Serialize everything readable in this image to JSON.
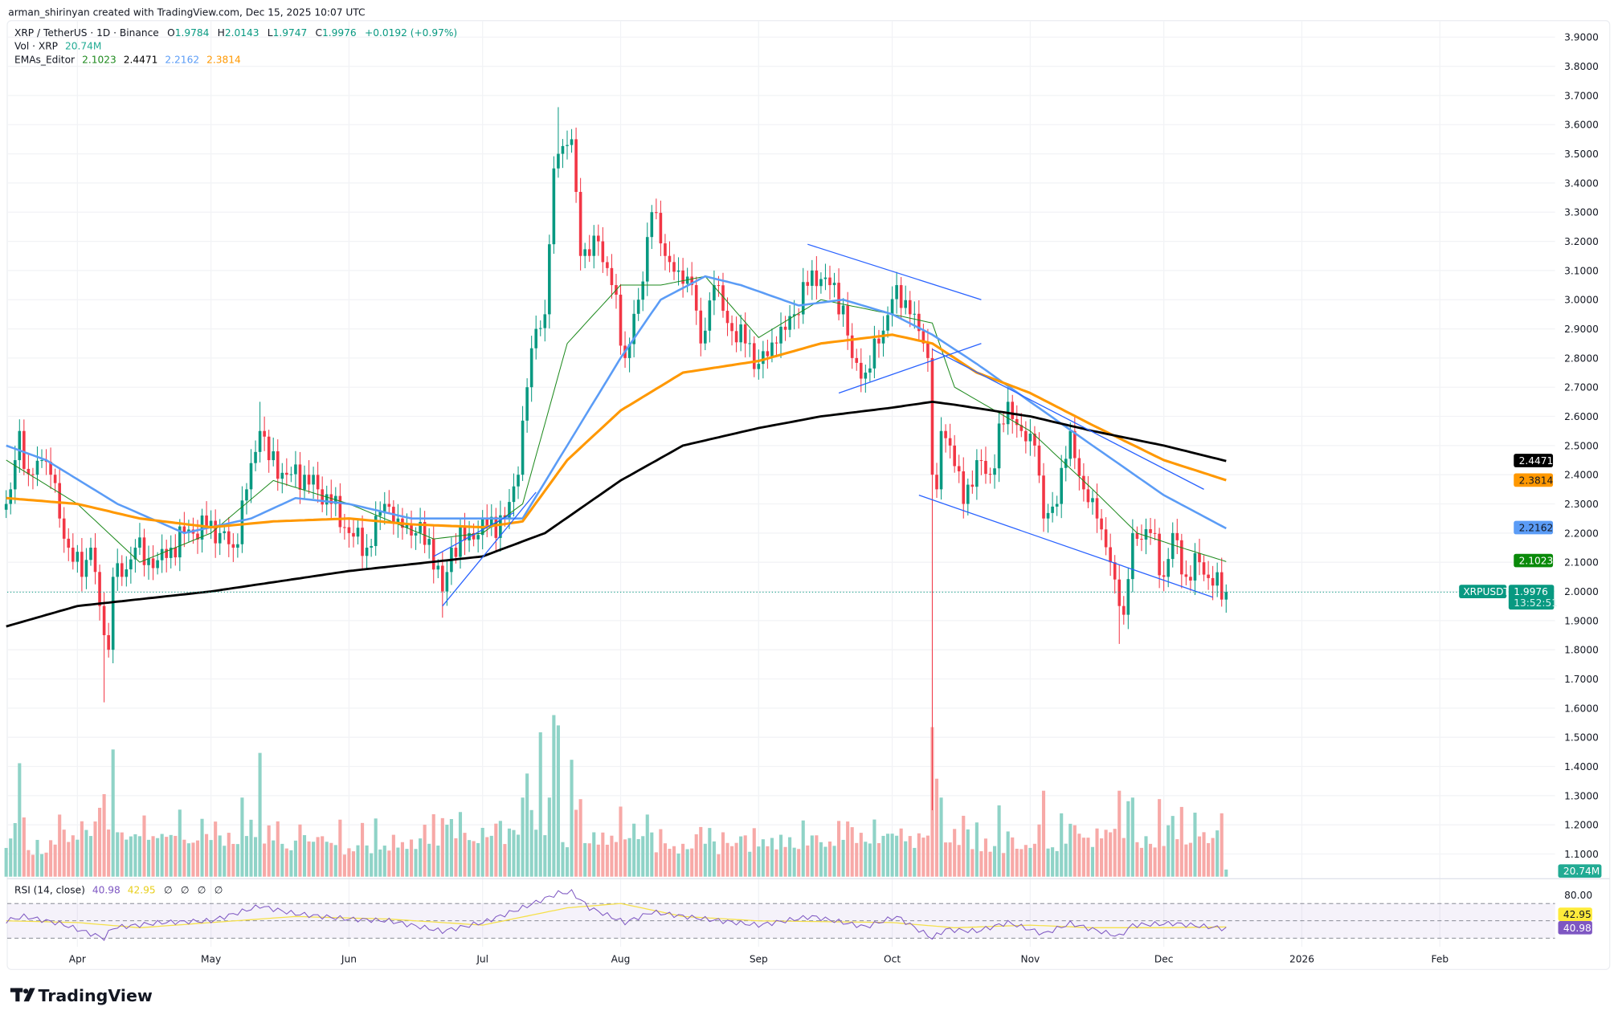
{
  "header": {
    "credit": "arman_shirinyan created with TradingView.com, Dec 15, 2025 10:07 UTC"
  },
  "legend": {
    "symbol": "XRP / TetherUS · 1D · Binance",
    "o_label": "O",
    "o": "1.9784",
    "h_label": "H",
    "h": "2.0143",
    "l_label": "L",
    "l": "1.9747",
    "c_label": "C",
    "c": "1.9976",
    "change": "+0.0192 (+0.97%)",
    "vol_label": "Vol · XRP",
    "vol": "20.74M",
    "ema_label": "EMAs_Editor",
    "ema_values": [
      "2.1023",
      "2.4471",
      "2.2162",
      "2.3814"
    ],
    "rsi_label": "RSI (14, close)",
    "rsi": "40.98",
    "rsi_ma": "42.95",
    "rsi_extra": [
      "∅",
      "∅",
      "∅",
      "∅"
    ]
  },
  "badges": {
    "ema200": "2.4471",
    "ema100": "2.3814",
    "ema50": "2.2162",
    "ema20": "2.1023",
    "symbol": "XRPUSDT",
    "price": "1.9976",
    "countdown": "13:52:51",
    "volume": "20.74M",
    "rsi_ma": "42.95",
    "rsi": "40.98"
  },
  "colors": {
    "up": "#089981",
    "down": "#f23645",
    "ema20": "#1e8a1e",
    "ema200": "#000000",
    "ema50": "#5b9cf6",
    "ema100": "#ff9800",
    "rsi": "#7e57c2",
    "rsi_ma": "#f5e04a",
    "trendline": "#2962ff"
  },
  "logo": {
    "text": "TradingView"
  },
  "chart_data": {
    "type": "candlestick",
    "price_axis": {
      "ylim": [
        1.1,
        3.9
      ],
      "ticks": [
        "3.9000",
        "3.8000",
        "3.7000",
        "3.6000",
        "3.5000",
        "3.4000",
        "3.3000",
        "3.2000",
        "3.1000",
        "3.0000",
        "2.9000",
        "2.8000",
        "2.7000",
        "2.6000",
        "2.5000",
        "2.4000",
        "2.3000",
        "2.2000",
        "2.1000",
        "2.0000",
        "1.9000",
        "1.8000",
        "1.7000",
        "1.6000",
        "1.5000",
        "1.4000",
        "1.3000",
        "1.2000",
        "1.1000"
      ]
    },
    "time_axis": {
      "range": [
        "2025-03-16",
        "2026-02-20"
      ],
      "ticks": [
        {
          "label": "Apr",
          "date": "2025-04-01"
        },
        {
          "label": "May",
          "date": "2025-05-01"
        },
        {
          "label": "Jun",
          "date": "2025-06-01"
        },
        {
          "label": "Jul",
          "date": "2025-07-01"
        },
        {
          "label": "Aug",
          "date": "2025-08-01"
        },
        {
          "label": "Sep",
          "date": "2025-09-01"
        },
        {
          "label": "Oct",
          "date": "2025-10-01"
        },
        {
          "label": "Nov",
          "date": "2025-11-01"
        },
        {
          "label": "Dec",
          "date": "2025-12-01"
        },
        {
          "label": "2026",
          "date": "2026-01-01"
        },
        {
          "label": "Feb",
          "date": "2026-02-01"
        }
      ]
    },
    "close": [
      [
        "2025-03-16",
        2.3
      ],
      [
        "2025-03-17",
        2.35
      ],
      [
        "2025-03-18",
        2.45
      ],
      [
        "2025-03-19",
        2.55
      ],
      [
        "2025-03-20",
        2.42
      ],
      [
        "2025-03-22",
        2.4
      ],
      [
        "2025-03-24",
        2.45
      ],
      [
        "2025-03-26",
        2.4
      ],
      [
        "2025-03-28",
        2.25
      ],
      [
        "2025-03-30",
        2.15
      ],
      [
        "2025-04-02",
        2.05
      ],
      [
        "2025-04-04",
        2.15
      ],
      [
        "2025-04-06",
        1.95
      ],
      [
        "2025-04-07",
        1.85
      ],
      [
        "2025-04-08",
        1.8
      ],
      [
        "2025-04-09",
        2.05
      ],
      [
        "2025-04-11",
        2.05
      ],
      [
        "2025-04-14",
        2.15
      ],
      [
        "2025-04-18",
        2.08
      ],
      [
        "2025-04-22",
        2.15
      ],
      [
        "2025-04-25",
        2.2
      ],
      [
        "2025-04-30",
        2.22
      ],
      [
        "2025-05-03",
        2.2
      ],
      [
        "2025-05-06",
        2.15
      ],
      [
        "2025-05-09",
        2.35
      ],
      [
        "2025-05-12",
        2.55
      ],
      [
        "2025-05-14",
        2.45
      ],
      [
        "2025-05-18",
        2.4
      ],
      [
        "2025-05-22",
        2.4
      ],
      [
        "2025-05-25",
        2.35
      ],
      [
        "2025-05-28",
        2.3
      ],
      [
        "2025-06-01",
        2.2
      ],
      [
        "2025-06-05",
        2.15
      ],
      [
        "2025-06-09",
        2.3
      ],
      [
        "2025-06-12",
        2.25
      ],
      [
        "2025-06-16",
        2.2
      ],
      [
        "2025-06-19",
        2.18
      ],
      [
        "2025-06-22",
        2.0
      ],
      [
        "2025-06-24",
        2.15
      ],
      [
        "2025-06-28",
        2.2
      ],
      [
        "2025-07-02",
        2.22
      ],
      [
        "2025-07-06",
        2.25
      ],
      [
        "2025-07-09",
        2.4
      ],
      [
        "2025-07-11",
        2.7
      ],
      [
        "2025-07-13",
        2.9
      ],
      [
        "2025-07-15",
        2.95
      ],
      [
        "2025-07-17",
        3.45
      ],
      [
        "2025-07-18",
        3.5
      ],
      [
        "2025-07-21",
        3.55
      ],
      [
        "2025-07-23",
        3.15
      ],
      [
        "2025-07-25",
        3.15
      ],
      [
        "2025-07-27",
        3.2
      ],
      [
        "2025-07-30",
        3.05
      ],
      [
        "2025-08-02",
        2.8
      ],
      [
        "2025-08-05",
        3.0
      ],
      [
        "2025-08-08",
        3.3
      ],
      [
        "2025-08-11",
        3.15
      ],
      [
        "2025-08-14",
        3.1
      ],
      [
        "2025-08-17",
        3.05
      ],
      [
        "2025-08-19",
        2.85
      ],
      [
        "2025-08-22",
        3.05
      ],
      [
        "2025-08-25",
        2.92
      ],
      [
        "2025-08-29",
        2.85
      ],
      [
        "2025-09-01",
        2.78
      ],
      [
        "2025-09-05",
        2.85
      ],
      [
        "2025-09-09",
        2.95
      ],
      [
        "2025-09-13",
        3.1
      ],
      [
        "2025-09-17",
        3.05
      ],
      [
        "2025-09-20",
        2.98
      ],
      [
        "2025-09-22",
        2.8
      ],
      [
        "2025-09-25",
        2.75
      ],
      [
        "2025-09-28",
        2.85
      ],
      [
        "2025-10-02",
        3.05
      ],
      [
        "2025-10-05",
        2.95
      ],
      [
        "2025-10-08",
        2.85
      ],
      [
        "2025-10-09",
        2.8
      ],
      [
        "2025-10-10",
        2.4
      ],
      [
        "2025-10-11",
        2.35
      ],
      [
        "2025-10-12",
        2.55
      ],
      [
        "2025-10-14",
        2.5
      ],
      [
        "2025-10-17",
        2.3
      ],
      [
        "2025-10-20",
        2.45
      ],
      [
        "2025-10-23",
        2.4
      ],
      [
        "2025-10-27",
        2.65
      ],
      [
        "2025-10-30",
        2.55
      ],
      [
        "2025-11-02",
        2.5
      ],
      [
        "2025-11-04",
        2.25
      ],
      [
        "2025-11-07",
        2.3
      ],
      [
        "2025-11-10",
        2.55
      ],
      [
        "2025-11-13",
        2.35
      ],
      [
        "2025-11-16",
        2.25
      ],
      [
        "2025-11-19",
        2.1
      ],
      [
        "2025-11-21",
        1.95
      ],
      [
        "2025-11-22",
        1.92
      ],
      [
        "2025-11-24",
        2.2
      ],
      [
        "2025-11-28",
        2.2
      ],
      [
        "2025-12-01",
        2.05
      ],
      [
        "2025-12-03",
        2.2
      ],
      [
        "2025-12-06",
        2.05
      ],
      [
        "2025-12-09",
        2.1
      ],
      [
        "2025-12-12",
        2.02
      ],
      [
        "2025-12-15",
        1.9976
      ]
    ],
    "notable_highs": [
      [
        "2025-07-18",
        3.66
      ],
      [
        "2025-05-12",
        2.65
      ],
      [
        "2025-03-19",
        2.59
      ]
    ],
    "notable_lows": [
      [
        "2025-04-07",
        1.62
      ],
      [
        "2025-10-10",
        1.25
      ],
      [
        "2025-11-21",
        1.82
      ],
      [
        "2025-06-22",
        1.91
      ]
    ],
    "volume_spikes_m": [
      [
        "2025-03-19",
        330
      ],
      [
        "2025-04-07",
        240
      ],
      [
        "2025-04-09",
        370
      ],
      [
        "2025-05-12",
        360
      ],
      [
        "2025-07-11",
        300
      ],
      [
        "2025-07-14",
        420
      ],
      [
        "2025-07-17",
        470
      ],
      [
        "2025-07-18",
        440
      ],
      [
        "2025-07-21",
        340
      ],
      [
        "2025-10-10",
        435
      ],
      [
        "2025-10-11",
        285
      ],
      [
        "2025-11-04",
        250
      ],
      [
        "2025-11-21",
        250
      ],
      [
        "2025-12-15",
        20.74
      ]
    ],
    "series": [
      {
        "name": "EMA 20",
        "color_key": "ema20",
        "points": [
          [
            "2025-03-16",
            2.45
          ],
          [
            "2025-04-01",
            2.3
          ],
          [
            "2025-04-15",
            2.1
          ],
          [
            "2025-05-01",
            2.2
          ],
          [
            "2025-05-15",
            2.38
          ],
          [
            "2025-06-01",
            2.3
          ],
          [
            "2025-06-20",
            2.18
          ],
          [
            "2025-07-01",
            2.2
          ],
          [
            "2025-07-10",
            2.3
          ],
          [
            "2025-07-20",
            2.85
          ],
          [
            "2025-08-01",
            3.05
          ],
          [
            "2025-08-10",
            3.05
          ],
          [
            "2025-08-20",
            3.08
          ],
          [
            "2025-09-01",
            2.87
          ],
          [
            "2025-09-15",
            3.0
          ],
          [
            "2025-10-01",
            2.95
          ],
          [
            "2025-10-10",
            2.92
          ],
          [
            "2025-10-15",
            2.7
          ],
          [
            "2025-11-01",
            2.55
          ],
          [
            "2025-11-15",
            2.35
          ],
          [
            "2025-11-25",
            2.2
          ],
          [
            "2025-12-05",
            2.15
          ],
          [
            "2025-12-15",
            2.1023
          ]
        ]
      },
      {
        "name": "EMA 50",
        "color_key": "ema50",
        "points": [
          [
            "2025-03-16",
            2.5
          ],
          [
            "2025-03-25",
            2.45
          ],
          [
            "2025-04-10",
            2.3
          ],
          [
            "2025-04-25",
            2.2
          ],
          [
            "2025-05-10",
            2.25
          ],
          [
            "2025-05-20",
            2.32
          ],
          [
            "2025-06-01",
            2.3
          ],
          [
            "2025-06-15",
            2.25
          ],
          [
            "2025-07-01",
            2.25
          ],
          [
            "2025-07-10",
            2.25
          ],
          [
            "2025-07-20",
            2.5
          ],
          [
            "2025-08-01",
            2.8
          ],
          [
            "2025-08-10",
            3.0
          ],
          [
            "2025-08-20",
            3.08
          ],
          [
            "2025-08-28",
            3.05
          ],
          [
            "2025-09-10",
            2.98
          ],
          [
            "2025-09-20",
            3.0
          ],
          [
            "2025-10-01",
            2.95
          ],
          [
            "2025-10-10",
            2.88
          ],
          [
            "2025-10-20",
            2.78
          ],
          [
            "2025-11-01",
            2.65
          ],
          [
            "2025-11-15",
            2.5
          ],
          [
            "2025-12-01",
            2.33
          ],
          [
            "2025-12-15",
            2.2162
          ]
        ]
      },
      {
        "name": "EMA 100",
        "color_key": "ema100",
        "points": [
          [
            "2025-03-16",
            2.32
          ],
          [
            "2025-04-01",
            2.3
          ],
          [
            "2025-04-15",
            2.25
          ],
          [
            "2025-05-01",
            2.22
          ],
          [
            "2025-05-15",
            2.24
          ],
          [
            "2025-06-01",
            2.25
          ],
          [
            "2025-06-15",
            2.23
          ],
          [
            "2025-07-01",
            2.22
          ],
          [
            "2025-07-10",
            2.24
          ],
          [
            "2025-07-20",
            2.45
          ],
          [
            "2025-08-01",
            2.62
          ],
          [
            "2025-08-15",
            2.75
          ],
          [
            "2025-09-01",
            2.79
          ],
          [
            "2025-09-15",
            2.85
          ],
          [
            "2025-10-01",
            2.88
          ],
          [
            "2025-10-10",
            2.85
          ],
          [
            "2025-10-20",
            2.75
          ],
          [
            "2025-11-01",
            2.68
          ],
          [
            "2025-11-15",
            2.57
          ],
          [
            "2025-12-01",
            2.45
          ],
          [
            "2025-12-15",
            2.3814
          ]
        ]
      },
      {
        "name": "EMA 200",
        "color_key": "ema200",
        "points": [
          [
            "2025-03-16",
            1.88
          ],
          [
            "2025-04-01",
            1.95
          ],
          [
            "2025-05-01",
            2.0
          ],
          [
            "2025-06-01",
            2.07
          ],
          [
            "2025-07-01",
            2.12
          ],
          [
            "2025-07-15",
            2.2
          ],
          [
            "2025-08-01",
            2.38
          ],
          [
            "2025-08-15",
            2.5
          ],
          [
            "2025-09-01",
            2.56
          ],
          [
            "2025-09-15",
            2.6
          ],
          [
            "2025-10-01",
            2.63
          ],
          [
            "2025-10-10",
            2.65
          ],
          [
            "2025-10-15",
            2.64
          ],
          [
            "2025-11-01",
            2.6
          ],
          [
            "2025-11-15",
            2.55
          ],
          [
            "2025-12-01",
            2.5
          ],
          [
            "2025-12-15",
            2.4471
          ]
        ]
      }
    ],
    "trendlines": [
      [
        [
          "2025-06-22",
          1.95
        ],
        [
          "2025-07-13",
          2.34
        ]
      ],
      [
        [
          "2025-06-20",
          2.12
        ],
        [
          "2025-07-08",
          2.27
        ]
      ],
      [
        [
          "2025-09-12",
          3.19
        ],
        [
          "2025-10-21",
          3.0
        ]
      ],
      [
        [
          "2025-09-19",
          2.68
        ],
        [
          "2025-10-21",
          2.85
        ]
      ],
      [
        [
          "2025-10-10",
          2.83
        ],
        [
          "2025-12-10",
          2.35
        ]
      ],
      [
        [
          "2025-10-07",
          2.33
        ],
        [
          "2025-12-12",
          1.98
        ]
      ]
    ],
    "rsi": {
      "levels": [
        70,
        50,
        30
      ],
      "tick": "80.00",
      "points": [
        [
          "2025-03-16",
          50
        ],
        [
          "2025-03-20",
          55
        ],
        [
          "2025-03-28",
          47
        ],
        [
          "2025-04-07",
          30
        ],
        [
          "2025-04-09",
          42
        ],
        [
          "2025-04-20",
          48
        ],
        [
          "2025-05-01",
          50
        ],
        [
          "2025-05-12",
          67
        ],
        [
          "2025-05-20",
          58
        ],
        [
          "2025-06-01",
          52
        ],
        [
          "2025-06-10",
          50
        ],
        [
          "2025-06-22",
          38
        ],
        [
          "2025-07-01",
          48
        ],
        [
          "2025-07-10",
          65
        ],
        [
          "2025-07-18",
          82
        ],
        [
          "2025-07-21",
          83
        ],
        [
          "2025-07-25",
          65
        ],
        [
          "2025-08-02",
          48
        ],
        [
          "2025-08-08",
          60
        ],
        [
          "2025-08-20",
          52
        ],
        [
          "2025-09-01",
          45
        ],
        [
          "2025-09-13",
          55
        ],
        [
          "2025-09-25",
          43
        ],
        [
          "2025-10-02",
          55
        ],
        [
          "2025-10-10",
          30
        ],
        [
          "2025-10-13",
          40
        ],
        [
          "2025-10-20",
          38
        ],
        [
          "2025-10-27",
          48
        ],
        [
          "2025-11-04",
          35
        ],
        [
          "2025-11-10",
          47
        ],
        [
          "2025-11-21",
          32
        ],
        [
          "2025-11-24",
          45
        ],
        [
          "2025-12-03",
          47
        ],
        [
          "2025-12-15",
          40.98
        ]
      ],
      "ma_points": [
        [
          "2025-03-16",
          50
        ],
        [
          "2025-04-01",
          48
        ],
        [
          "2025-04-15",
          42
        ],
        [
          "2025-05-01",
          48
        ],
        [
          "2025-05-20",
          55
        ],
        [
          "2025-06-10",
          52
        ],
        [
          "2025-07-01",
          45
        ],
        [
          "2025-07-20",
          65
        ],
        [
          "2025-08-01",
          70
        ],
        [
          "2025-08-15",
          55
        ],
        [
          "2025-09-01",
          50
        ],
        [
          "2025-10-01",
          48
        ],
        [
          "2025-10-15",
          42
        ],
        [
          "2025-11-01",
          45
        ],
        [
          "2025-11-15",
          42
        ],
        [
          "2025-12-01",
          42
        ],
        [
          "2025-12-15",
          42.95
        ]
      ]
    }
  }
}
